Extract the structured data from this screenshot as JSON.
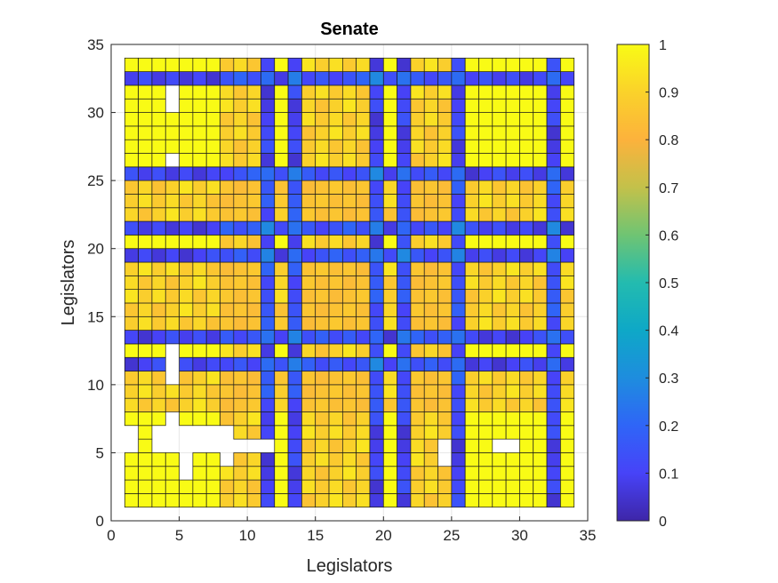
{
  "chart_data": {
    "type": "heatmap",
    "title": "Senate",
    "xlabel": "Legislators",
    "ylabel": "Legislators",
    "xlim": [
      0,
      35
    ],
    "ylim": [
      0,
      35
    ],
    "xticks": [
      0,
      5,
      10,
      15,
      20,
      25,
      30,
      35
    ],
    "yticks": [
      0,
      5,
      10,
      15,
      20,
      25,
      30,
      35
    ],
    "grid": true,
    "n_legislators": 33,
    "colorbar": {
      "range": [
        0,
        1
      ],
      "ticks": [
        0,
        0.1,
        0.2,
        0.3,
        0.4,
        0.5,
        0.6,
        0.7,
        0.8,
        0.9,
        1
      ],
      "tick_labels": [
        "0",
        "0.1",
        "0.2",
        "0.3",
        "0.4",
        "0.5",
        "0.6",
        "0.7",
        "0.8",
        "0.9",
        "1"
      ],
      "colormap": "parula"
    },
    "groups": {
      "yellow": [
        1,
        2,
        3,
        4,
        5,
        6,
        7,
        12,
        20,
        26,
        27,
        28,
        29,
        30,
        31,
        33
      ],
      "orange": [
        8,
        9,
        10,
        14,
        15,
        16,
        17,
        18,
        22,
        23,
        24
      ],
      "blue": [
        11,
        13,
        19,
        21,
        25,
        32
      ]
    },
    "row_order_top_to_bottom": [
      33,
      32,
      31,
      30,
      29,
      28,
      27,
      26,
      25,
      24,
      23,
      22,
      21,
      20,
      19,
      18,
      17,
      16,
      15,
      14,
      13,
      12,
      11,
      10,
      9,
      8,
      7,
      6,
      5,
      4,
      3,
      2,
      1
    ],
    "missing_cells": [
      [
        4,
        31
      ],
      [
        4,
        30
      ],
      [
        4,
        26
      ],
      [
        4,
        12
      ],
      [
        4,
        11
      ],
      [
        4,
        10
      ],
      [
        4,
        7
      ],
      [
        4,
        6
      ],
      [
        4,
        5
      ],
      [
        5,
        6
      ],
      [
        5,
        5
      ],
      [
        5,
        4
      ],
      [
        5,
        3
      ],
      [
        1,
        6
      ],
      [
        1,
        5
      ],
      [
        3,
        6
      ],
      [
        3,
        5
      ],
      [
        6,
        6
      ],
      [
        6,
        5
      ],
      [
        7,
        6
      ],
      [
        7,
        5
      ],
      [
        8,
        6
      ],
      [
        8,
        5
      ],
      [
        8,
        4
      ],
      [
        9,
        5
      ],
      [
        10,
        5
      ],
      [
        11,
        5
      ],
      [
        24,
        5
      ],
      [
        24,
        4
      ],
      [
        28,
        5
      ],
      [
        29,
        5
      ]
    ],
    "value_rules": {
      "same_group": 1.0,
      "yellow_orange": 0.9,
      "yellow_blue": 0.1,
      "orange_blue": 0.15,
      "orange_orange": 0.85,
      "blue_blue": 0.25
    }
  }
}
